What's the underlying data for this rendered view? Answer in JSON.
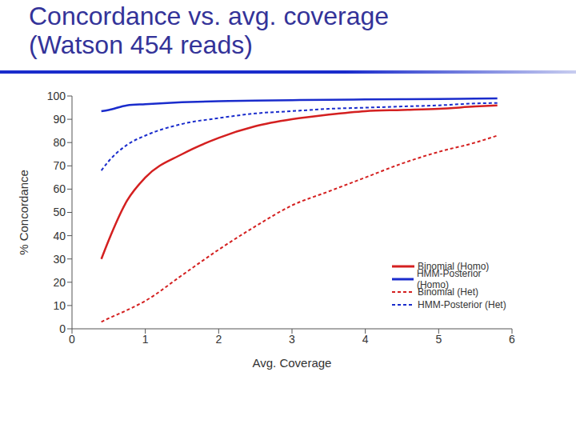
{
  "chart_data": {
    "type": "line",
    "title": "Concordance vs. avg. coverage (Watson 454 reads)",
    "x_label": "Avg. Coverage",
    "y_label": "% Concordance",
    "x": [
      0.4,
      0.5,
      0.75,
      1,
      1.5,
      2,
      2.5,
      3,
      3.5,
      4,
      4.5,
      5,
      5.5,
      5.8
    ],
    "series": [
      {
        "name": "Binomial (Homo)",
        "color": "#d42020",
        "line_style": "solid",
        "values": [
          30,
          38,
          55,
          65,
          75,
          82,
          87,
          90,
          92,
          93.5,
          94,
          94.5,
          95.5,
          96
        ]
      },
      {
        "name": "HMM-Posterior (Homo)",
        "color": "#1a2ccc",
        "line_style": "solid",
        "values": [
          93.5,
          94,
          96,
          96.5,
          97.3,
          97.8,
          98,
          98.2,
          98.4,
          98.5,
          98.6,
          98.7,
          98.9,
          99
        ]
      },
      {
        "name": "Binomial (Het)",
        "color": "#d42020",
        "line_style": "dashed",
        "values": [
          3,
          4.5,
          8,
          12,
          23,
          34,
          44,
          53,
          59,
          65,
          71,
          76,
          80,
          83
        ]
      },
      {
        "name": "HMM-Posterior (Het)",
        "color": "#1a2ccc",
        "line_style": "dashed",
        "values": [
          68,
          72,
          79,
          83,
          88,
          90.5,
          92.5,
          93.5,
          94.5,
          95,
          95.5,
          96,
          96.8,
          97
        ]
      }
    ],
    "xlim": [
      0,
      6
    ],
    "xticks": [
      0,
      1,
      2,
      3,
      4,
      5,
      6
    ],
    "ylim": [
      0,
      100
    ],
    "yticks": [
      0,
      10,
      20,
      30,
      40,
      50,
      60,
      70,
      80,
      90,
      100
    ],
    "grid": false,
    "legend": "lower right"
  }
}
